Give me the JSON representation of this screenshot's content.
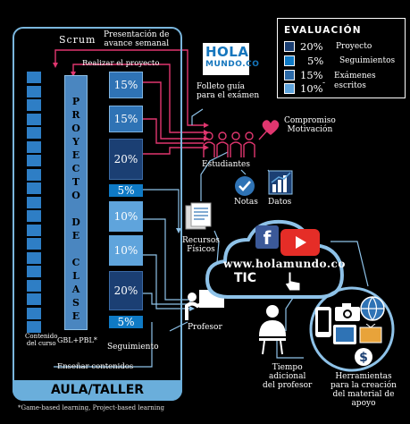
{
  "evaluation": {
    "title": "EVALUACIÓN",
    "rows": [
      {
        "pct": "20%",
        "label": "Proyecto",
        "color": "#1b3f73"
      },
      {
        "pct": "5%",
        "label": "Seguimientos",
        "color": "#0f7ac5"
      },
      {
        "pct": "15%",
        "label": "Exámenes",
        "label2": "escritos",
        "color": "#2c6aa8"
      },
      {
        "pct": "10%",
        "label": "",
        "color": "#5fa4dc"
      }
    ]
  },
  "aula": {
    "label": "AULA/TALLER",
    "scrum_title": "Scrum",
    "scrum_desc_1": "Presentación de",
    "scrum_desc_2": "avance semanal",
    "realizar": "Realizar el proyecto",
    "proyecto_letters": [
      "P",
      "R",
      "O",
      "Y",
      "E",
      "C",
      "T",
      "O",
      " ",
      "D",
      "E",
      " ",
      "C",
      "L",
      "A",
      "S",
      "E"
    ],
    "contenido_1": "Contenido",
    "contenido_2": "del curso",
    "gbl": "GBL+PBL*",
    "seguimiento": "Seguimiento",
    "ensenar": "Enseñar contenidos",
    "blocks": [
      {
        "pct": "15%",
        "color": "#2f73b5"
      },
      {
        "pct": "15%",
        "color": "#2f73b5"
      },
      {
        "pct": "20%",
        "color": "#1b3f73"
      },
      {
        "pct": "5%",
        "color": "#0f7ac5"
      },
      {
        "pct": "10%",
        "color": "#5fa4dc"
      },
      {
        "pct": "10%",
        "color": "#5fa4dc"
      },
      {
        "pct": "20%",
        "color": "#1b3f73"
      },
      {
        "pct": "5%",
        "color": "#0f7ac5"
      }
    ]
  },
  "footnote": "*Game-based learning, Project-based learning",
  "nodes": {
    "hola_line1": "HOLA",
    "hola_line2": "MUNDO.CO",
    "folleto_1": "Folleto guía",
    "folleto_2": "para el exámen",
    "compromiso_1": "Compromiso",
    "compromiso_2": "Motivación",
    "estudiantes": "Estudiantes",
    "notas": "Notas",
    "datos": "Datos",
    "recursos_1": "Recursos",
    "recursos_2": "Físicos",
    "profesor": "Profesor",
    "tic": "TIC",
    "url": "www.holamundo.co",
    "tiempo_1": "Tiempo",
    "tiempo_2": "adicional",
    "tiempo_3": "del profesor",
    "herramientas_1": "Herramientas",
    "herramientas_2": "para la creación",
    "herramientas_3": "del material de",
    "herramientas_4": "apoyo"
  }
}
